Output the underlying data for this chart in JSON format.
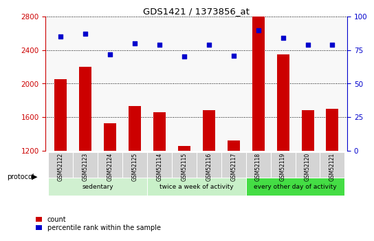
{
  "title": "GDS1421 / 1373856_at",
  "samples": [
    "GSM52122",
    "GSM52123",
    "GSM52124",
    "GSM52125",
    "GSM52114",
    "GSM52115",
    "GSM52116",
    "GSM52117",
    "GSM52118",
    "GSM52119",
    "GSM52120",
    "GSM52121"
  ],
  "count_values": [
    2050,
    2200,
    1530,
    1730,
    1660,
    1260,
    1680,
    1320,
    2800,
    2350,
    1680,
    1700
  ],
  "percentile_values": [
    85,
    87,
    72,
    80,
    79,
    70,
    79,
    71,
    90,
    84,
    79,
    79
  ],
  "ylim_left": [
    1200,
    2800
  ],
  "ylim_right": [
    0,
    100
  ],
  "yticks_left": [
    1200,
    1600,
    2000,
    2400,
    2800
  ],
  "yticks_right": [
    0,
    25,
    50,
    75,
    100
  ],
  "groups": [
    {
      "label": "sedentary",
      "start": 0,
      "end": 4
    },
    {
      "label": "twice a week of activity",
      "start": 4,
      "end": 8
    },
    {
      "label": "every other day of activity",
      "start": 8,
      "end": 12
    }
  ],
  "group_colors": [
    "#d0f0d0",
    "#c8f0c8",
    "#44dd44"
  ],
  "bar_color": "#cc0000",
  "dot_color": "#0000cc",
  "bar_width": 0.5,
  "legend_count_label": "count",
  "legend_pct_label": "percentile rank within the sample",
  "plot_bg": "#f8f8f8",
  "cell_bg": "#d4d4d4"
}
